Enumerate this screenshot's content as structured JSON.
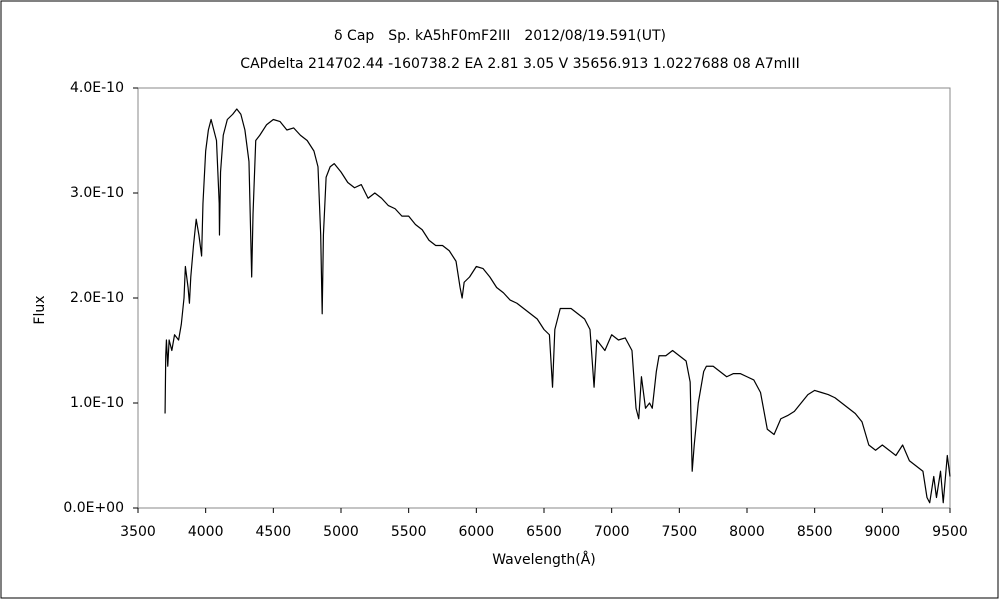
{
  "chart_data": {
    "type": "line",
    "title": "δ Cap　Sp. kA5hF0mF2III　2012/08/19.591(UT)",
    "subtitle": "CAPdelta 214702.44 -160738.2 EA 2.81 3.05 V 35656.913 1.0227688 08 A7mIII",
    "x_label": "Wavelength(Å)",
    "y_label": "Flux",
    "xlim": [
      3500,
      9500
    ],
    "xticks": [
      3500,
      4000,
      4500,
      5000,
      5500,
      6000,
      6500,
      7000,
      7500,
      8000,
      8500,
      9000,
      9500
    ],
    "ylim": [
      0,
      4e-10
    ],
    "yticks": [
      {
        "value": 0,
        "label": "0.0E+00"
      },
      {
        "value": 1e-10,
        "label": "1.0E-10"
      },
      {
        "value": 2e-10,
        "label": "2.0E-10"
      },
      {
        "value": 3e-10,
        "label": "3.0E-10"
      },
      {
        "value": 4e-10,
        "label": "4.0E-10"
      }
    ],
    "grid": false,
    "series": [
      {
        "color": "#000000",
        "x": [
          3700,
          3705,
          3710,
          3720,
          3730,
          3750,
          3770,
          3800,
          3820,
          3840,
          3850,
          3870,
          3880,
          3890,
          3910,
          3930,
          3950,
          3970,
          3980,
          4000,
          4020,
          4040,
          4060,
          4080,
          4100,
          4102,
          4110,
          4130,
          4160,
          4200,
          4230,
          4260,
          4290,
          4320,
          4340,
          4350,
          4370,
          4400,
          4450,
          4500,
          4550,
          4600,
          4650,
          4700,
          4750,
          4800,
          4830,
          4850,
          4861,
          4870,
          4890,
          4920,
          4950,
          5000,
          5050,
          5100,
          5150,
          5200,
          5250,
          5300,
          5350,
          5400,
          5450,
          5500,
          5550,
          5600,
          5650,
          5700,
          5750,
          5800,
          5850,
          5880,
          5895,
          5910,
          5950,
          6000,
          6050,
          6100,
          6150,
          6200,
          6250,
          6300,
          6350,
          6400,
          6450,
          6500,
          6540,
          6563,
          6580,
          6620,
          6700,
          6750,
          6800,
          6840,
          6870,
          6890,
          6920,
          6950,
          7000,
          7050,
          7100,
          7150,
          7180,
          7200,
          7220,
          7250,
          7280,
          7300,
          7330,
          7350,
          7400,
          7450,
          7500,
          7550,
          7580,
          7595,
          7610,
          7640,
          7680,
          7700,
          7750,
          7800,
          7850,
          7900,
          7950,
          8000,
          8050,
          8100,
          8150,
          8200,
          8250,
          8300,
          8350,
          8400,
          8450,
          8500,
          8550,
          8600,
          8650,
          8700,
          8750,
          8800,
          8850,
          8900,
          8950,
          9000,
          9050,
          9100,
          9150,
          9200,
          9250,
          9300,
          9330,
          9350,
          9380,
          9400,
          9430,
          9450,
          9480,
          9500
        ],
        "values": [
          9e-11,
          1.45e-10,
          1.6e-10,
          1.35e-10,
          1.6e-10,
          1.5e-10,
          1.65e-10,
          1.6e-10,
          1.75e-10,
          2e-10,
          2.3e-10,
          2.1e-10,
          1.95e-10,
          2.2e-10,
          2.5e-10,
          2.75e-10,
          2.6e-10,
          2.4e-10,
          2.9e-10,
          3.4e-10,
          3.6e-10,
          3.7e-10,
          3.6e-10,
          3.5e-10,
          2.9e-10,
          2.6e-10,
          3.2e-10,
          3.55e-10,
          3.7e-10,
          3.75e-10,
          3.8e-10,
          3.75e-10,
          3.6e-10,
          3.3e-10,
          2.2e-10,
          2.8e-10,
          3.5e-10,
          3.55e-10,
          3.65e-10,
          3.7e-10,
          3.68e-10,
          3.6e-10,
          3.62e-10,
          3.55e-10,
          3.5e-10,
          3.4e-10,
          3.25e-10,
          2.6e-10,
          1.85e-10,
          2.6e-10,
          3.15e-10,
          3.25e-10,
          3.28e-10,
          3.2e-10,
          3.1e-10,
          3.05e-10,
          3.08e-10,
          2.95e-10,
          3e-10,
          2.95e-10,
          2.88e-10,
          2.85e-10,
          2.78e-10,
          2.78e-10,
          2.7e-10,
          2.65e-10,
          2.55e-10,
          2.5e-10,
          2.5e-10,
          2.45e-10,
          2.35e-10,
          2.1e-10,
          2e-10,
          2.15e-10,
          2.2e-10,
          2.3e-10,
          2.28e-10,
          2.2e-10,
          2.1e-10,
          2.05e-10,
          1.98e-10,
          1.95e-10,
          1.9e-10,
          1.85e-10,
          1.8e-10,
          1.7e-10,
          1.65e-10,
          1.15e-10,
          1.7e-10,
          1.9e-10,
          1.9e-10,
          1.85e-10,
          1.8e-10,
          1.7e-10,
          1.15e-10,
          1.6e-10,
          1.55e-10,
          1.5e-10,
          1.65e-10,
          1.6e-10,
          1.62e-10,
          1.5e-10,
          9.5e-11,
          8.5e-11,
          1.25e-10,
          9.5e-11,
          1e-10,
          9.5e-11,
          1.3e-10,
          1.45e-10,
          1.45e-10,
          1.5e-10,
          1.45e-10,
          1.4e-10,
          1.2e-10,
          3.5e-11,
          6e-11,
          1e-10,
          1.3e-10,
          1.35e-10,
          1.35e-10,
          1.3e-10,
          1.25e-10,
          1.28e-10,
          1.28e-10,
          1.25e-10,
          1.22e-10,
          1.1e-10,
          7.5e-11,
          7e-11,
          8.5e-11,
          8.8e-11,
          9.2e-11,
          1e-10,
          1.08e-10,
          1.12e-10,
          1.1e-10,
          1.08e-10,
          1.05e-10,
          1e-10,
          9.5e-11,
          9e-11,
          8.2e-11,
          6e-11,
          5.5e-11,
          6e-11,
          5.5e-11,
          5e-11,
          6e-11,
          4.5e-11,
          4e-11,
          3.5e-11,
          1e-11,
          5e-12,
          3e-11,
          1e-11,
          3.5e-11,
          5e-12,
          5e-11,
          3e-11
        ]
      }
    ]
  }
}
